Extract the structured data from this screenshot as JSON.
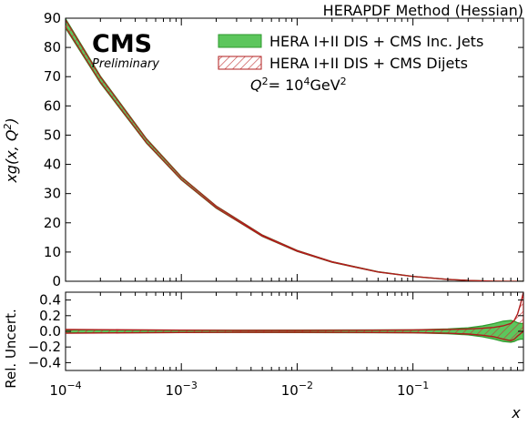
{
  "method_title": "HERAPDF Method (Hessian)",
  "logo": {
    "name": "CMS",
    "status": "Preliminary"
  },
  "annotation": {
    "q2_prefix": "Q",
    "q2_eq": "= 10",
    "q2_exp": "4",
    "q2_unit": "GeV",
    "q2_unit_exp": "2"
  },
  "colors": {
    "inc_fill": "#5cc65c",
    "inc_edge": "#2e9a2e",
    "dijet_edge": "#b01c1c",
    "dijet_hatch": "#c23a3a"
  },
  "chart_data": [
    {
      "type": "area",
      "panel": "main",
      "ylabel_parts": [
        "xg(x, Q",
        "2",
        ")"
      ],
      "x_scale": "log",
      "xlim": [
        0.0001,
        0.9
      ],
      "ylim": [
        0,
        90
      ],
      "yticks": [
        0,
        10,
        20,
        30,
        40,
        50,
        60,
        70,
        80,
        90
      ],
      "grid": false,
      "legend_position": "top-right",
      "x": [
        0.0001,
        0.0002,
        0.0005,
        0.001,
        0.002,
        0.005,
        0.01,
        0.02,
        0.05,
        0.1,
        0.2,
        0.3,
        0.5,
        0.7,
        0.9
      ],
      "series": [
        {
          "name": "HERA I+II DIS + CMS Inc. Jets",
          "style": "filled",
          "values": [
            88.2,
            69.0,
            48.0,
            35.2,
            25.4,
            15.6,
            10.4,
            6.6,
            3.2,
            1.65,
            0.65,
            0.3,
            0.06,
            0.01,
            0.0
          ],
          "band_halfwidth": [
            1.6,
            1.2,
            0.8,
            0.55,
            0.4,
            0.25,
            0.17,
            0.11,
            0.06,
            0.04,
            0.025,
            0.015,
            0.008,
            0.004,
            0.002
          ]
        },
        {
          "name": "HERA I+II DIS + CMS Dijets",
          "style": "hatched",
          "values": [
            88.2,
            69.0,
            48.0,
            35.2,
            25.4,
            15.6,
            10.4,
            6.6,
            3.2,
            1.65,
            0.65,
            0.3,
            0.06,
            0.01,
            0.0
          ],
          "band_halfwidth": [
            1.2,
            0.9,
            0.6,
            0.42,
            0.3,
            0.19,
            0.13,
            0.09,
            0.05,
            0.03,
            0.02,
            0.012,
            0.006,
            0.003,
            0.002
          ]
        }
      ]
    },
    {
      "type": "area",
      "panel": "ratio",
      "ylabel": "Rel. Uncert.",
      "xlabel": "x",
      "x_scale": "log",
      "xlim": [
        0.0001,
        0.9
      ],
      "ylim": [
        -0.5,
        0.5
      ],
      "yticks": [
        -0.4,
        -0.2,
        0.0,
        0.2,
        0.4
      ],
      "ytick_labels": [
        "−0.4",
        "−0.2",
        "0.0",
        "0.2",
        "0.4"
      ],
      "xticks": [
        {
          "base": "10",
          "exp": "−4",
          "value": 0.0001
        },
        {
          "base": "10",
          "exp": "−3",
          "value": 0.001
        },
        {
          "base": "10",
          "exp": "−2",
          "value": 0.01
        },
        {
          "base": "10",
          "exp": "−1",
          "value": 0.1
        }
      ],
      "x": [
        0.0001,
        0.0003,
        0.001,
        0.003,
        0.01,
        0.03,
        0.1,
        0.2,
        0.3,
        0.4,
        0.5,
        0.6,
        0.7,
        0.75,
        0.8,
        0.85,
        0.9
      ],
      "series": [
        {
          "name": "HERA I+II DIS + CMS Inc. Jets",
          "upper": [
            0.02,
            0.018,
            0.016,
            0.015,
            0.016,
            0.017,
            0.02,
            0.03,
            0.045,
            0.07,
            0.1,
            0.13,
            0.14,
            0.13,
            0.11,
            0.1,
            0.1
          ],
          "lower": [
            -0.02,
            -0.018,
            -0.016,
            -0.015,
            -0.016,
            -0.017,
            -0.02,
            -0.03,
            -0.045,
            -0.07,
            -0.1,
            -0.13,
            -0.14,
            -0.13,
            -0.11,
            -0.1,
            -0.1
          ]
        },
        {
          "name": "HERA I+II DIS + CMS Dijets",
          "upper": [
            0.025,
            0.02,
            0.015,
            0.012,
            0.012,
            0.014,
            0.018,
            0.025,
            0.03,
            0.04,
            0.05,
            0.07,
            0.1,
            0.14,
            0.22,
            0.35,
            0.5
          ],
          "lower": [
            -0.025,
            -0.02,
            -0.015,
            -0.012,
            -0.012,
            -0.014,
            -0.018,
            -0.025,
            -0.035,
            -0.05,
            -0.07,
            -0.1,
            -0.12,
            -0.1,
            -0.06,
            -0.03,
            0.0
          ]
        }
      ]
    }
  ]
}
